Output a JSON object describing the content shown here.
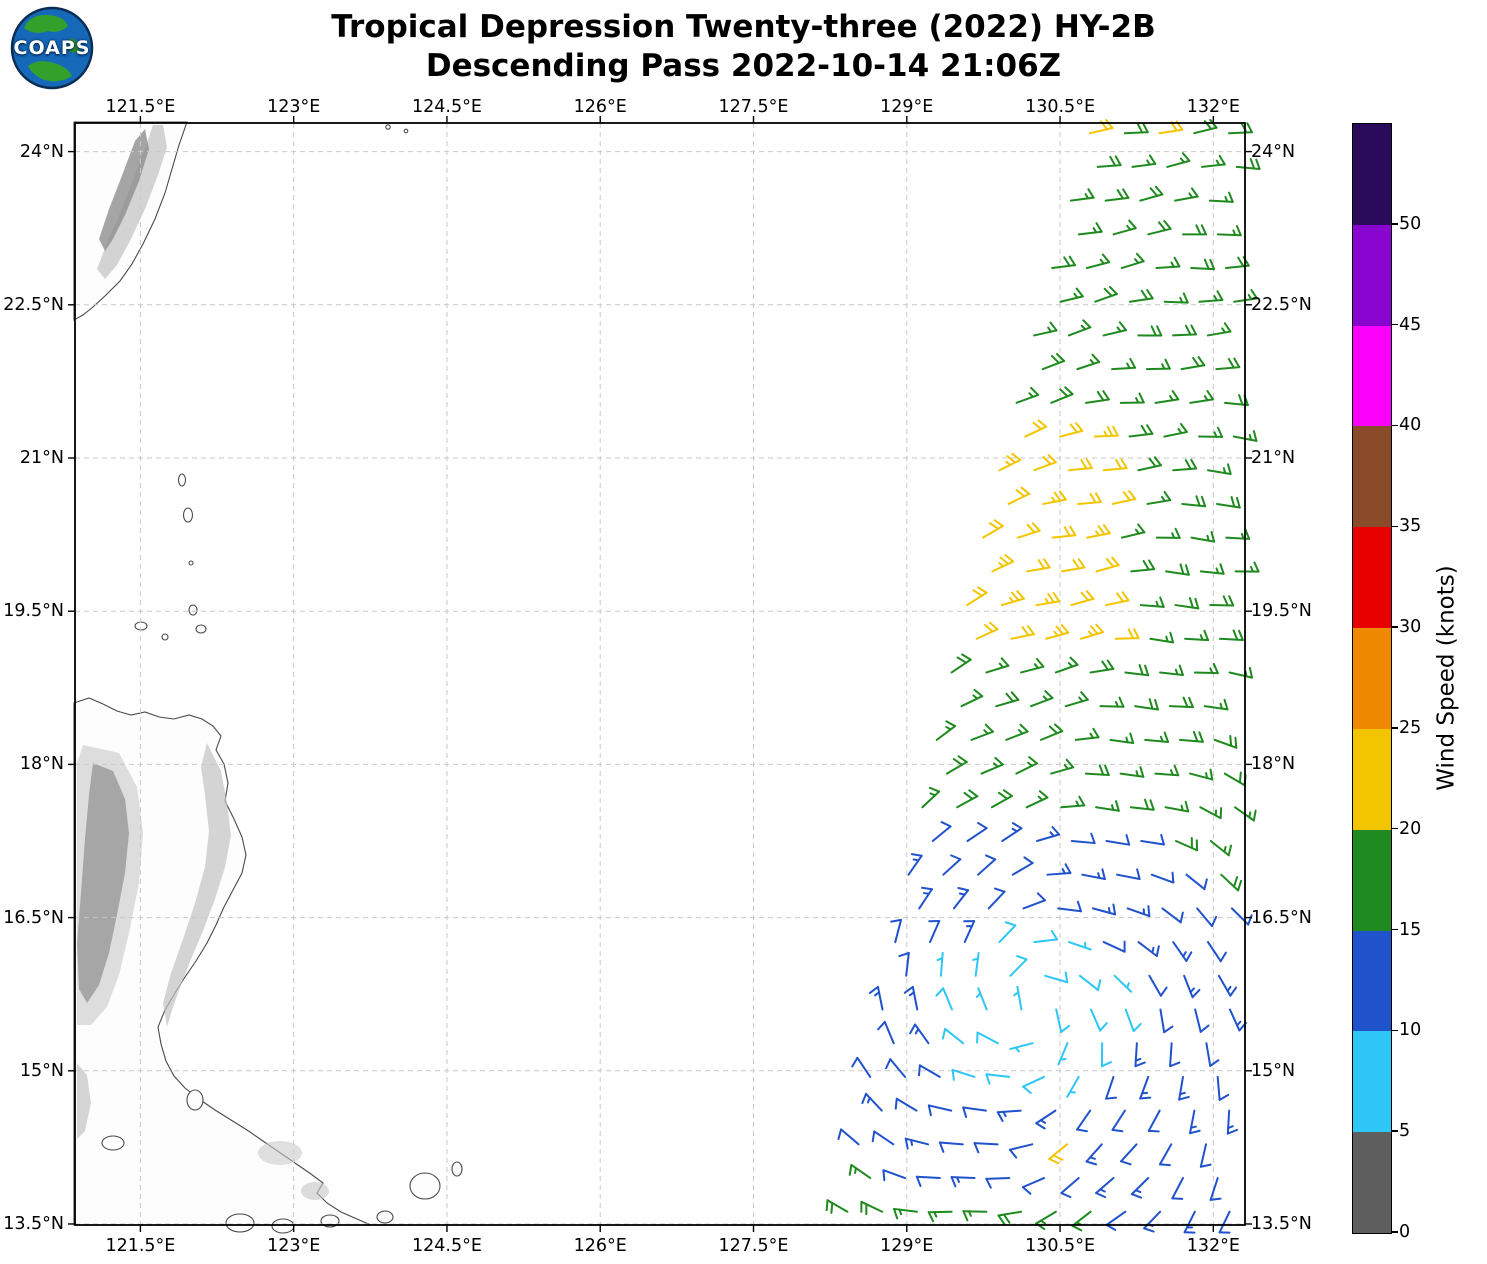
{
  "header": {
    "logo_text": "COAPS",
    "title_line1": "Tropical Depression Twenty-three (2022) HY-2B",
    "title_line2": "Descending Pass 2022-10-14 21:06Z"
  },
  "chart_data": {
    "type": "wind_barb_map",
    "title": "Tropical Depression Twenty-three (2022) HY-2B",
    "subtitle": "Descending Pass 2022-10-14 21:06Z",
    "satellite": "HY-2B",
    "pass_type": "Descending",
    "valid_time": "2022-10-14 21:06Z",
    "grid_style": "dashed",
    "extent": {
      "lon_min": 120.86,
      "lon_max": 132.31,
      "lat_min": 13.49,
      "lat_max": 24.28
    },
    "x_axis": {
      "tick_values": [
        121.5,
        123,
        124.5,
        126,
        127.5,
        129,
        130.5,
        132
      ],
      "tick_labels": [
        "121.5°E",
        "123°E",
        "124.5°E",
        "126°E",
        "127.5°E",
        "129°E",
        "130.5°E",
        "132°E"
      ]
    },
    "y_axis": {
      "tick_values": [
        24,
        22.5,
        21,
        19.5,
        18,
        16.5,
        15,
        13.5
      ],
      "tick_labels": [
        "24°N",
        "22.5°N",
        "21°N",
        "19.5°N",
        "18°N",
        "16.5°N",
        "15°N",
        "13.5°N"
      ]
    },
    "colorbar": {
      "label": "Wind Speed (knots)",
      "units": "knots",
      "range": [
        0,
        55
      ],
      "tick_values": [
        0,
        5,
        10,
        15,
        20,
        25,
        30,
        35,
        40,
        45,
        50
      ],
      "segments": [
        {
          "range": [
            0,
            5
          ],
          "color": "#5E5E5E"
        },
        {
          "range": [
            5,
            10
          ],
          "color": "#2DC6F5"
        },
        {
          "range": [
            10,
            15
          ],
          "color": "#2052CC"
        },
        {
          "range": [
            15,
            20
          ],
          "color": "#1F8A1F"
        },
        {
          "range": [
            20,
            25
          ],
          "color": "#F2C500"
        },
        {
          "range": [
            25,
            30
          ],
          "color": "#EF8A00"
        },
        {
          "range": [
            30,
            35
          ],
          "color": "#E60000"
        },
        {
          "range": [
            35,
            40
          ],
          "color": "#8A4B2A"
        },
        {
          "range": [
            40,
            45
          ],
          "color": "#FB00FB"
        },
        {
          "range": [
            45,
            50
          ],
          "color": "#8805CF"
        },
        {
          "range": [
            50,
            55
          ],
          "color": "#2A0A5A"
        }
      ]
    },
    "wind_field": {
      "description": "HY-2B scatterometer ocean surface wind barbs; cyclonic (counterclockwise) circulation around the tropical depression center; light winds (5-10 kt, cyan) near center, 10-15 kt (blue) ring, 15-20 kt (green) outer field, 20-25 kt (yellow) lobe to the north",
      "center": {
        "lat": 15.6,
        "lon": 130.2
      },
      "rotation": "cyclonic_ccw",
      "inflow": 0.3,
      "lon_scale": 0.74,
      "speed_rings": [
        {
          "max_r": 0.8,
          "speed_kt": 8
        },
        {
          "max_r": 1.9,
          "speed_kt": 12
        },
        {
          "max_r": 99,
          "speed_kt": 17
        }
      ],
      "speed_lobes": [
        {
          "lat": [
            19.2,
            21.4
          ],
          "lon": [
            129.0,
            131.05
          ],
          "speed_kt": 22
        },
        {
          "lat": [
            23.85,
            24.3
          ],
          "lon": [
            130.6,
            131.75
          ],
          "speed_kt": 21
        },
        {
          "lat": [
            14.2,
            14.5
          ],
          "lon": [
            130.35,
            130.8
          ],
          "speed_kt": 21
        },
        {
          "lat": [
            13.49,
            15.0
          ],
          "lon": [
            131.1,
            132.35
          ],
          "speed_kt": 12
        }
      ],
      "swath": {
        "ref_lat": 13.5,
        "base_lon": 128.4,
        "slope": 0.16,
        "curve": 0.006,
        "lon_max": 132.25
      },
      "grid": {
        "lat_min": 13.62,
        "lat_max": 24.22,
        "lat_step": 0.33,
        "lon_step": 0.34,
        "stagger": 0.17
      },
      "speed_jitter_kt": 1.2,
      "direction_jitter_deg": 8,
      "barb_units": "knots"
    }
  }
}
